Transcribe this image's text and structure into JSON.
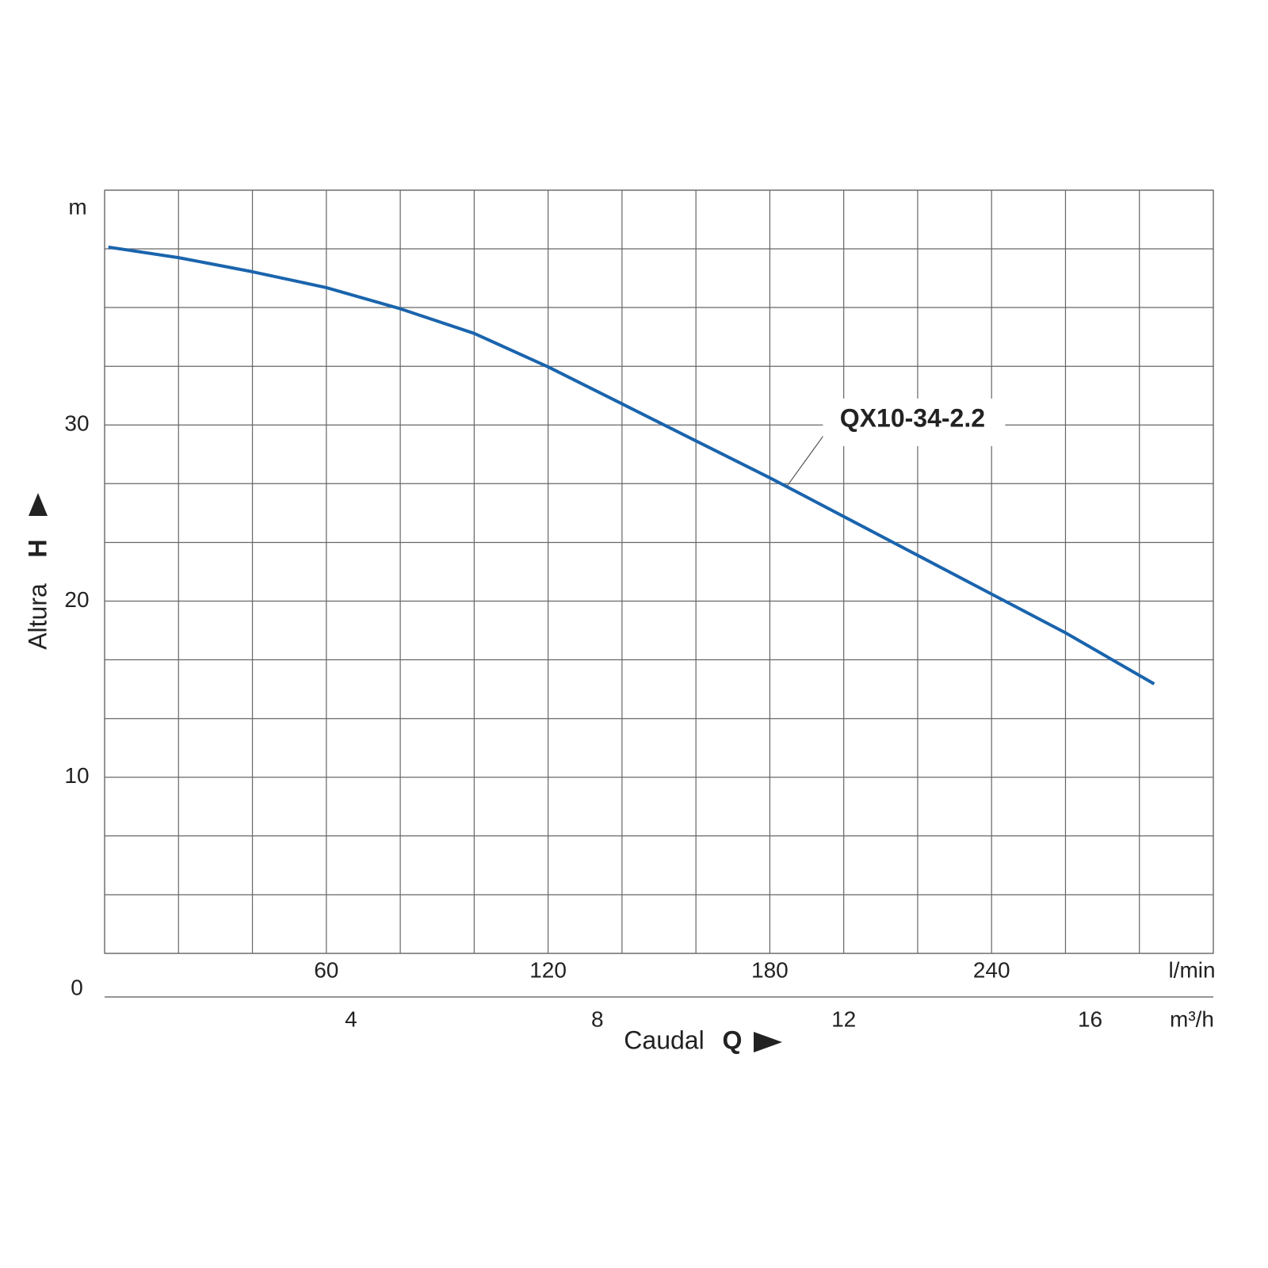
{
  "chart_data": {
    "type": "line",
    "y_unit": "m",
    "y_label": "Altura",
    "y_symbol": "H",
    "x_label": "Caudal",
    "x_symbol": "Q",
    "x_unit": "l/min",
    "x2_unit": "m³/h",
    "xlim": [
      0,
      300
    ],
    "xticks": [
      60,
      120,
      180,
      240
    ],
    "xgrid": [
      0,
      20,
      40,
      60,
      80,
      100,
      120,
      140,
      160,
      180,
      200,
      220,
      240,
      260,
      280,
      300
    ],
    "x2lim": [
      0,
      18
    ],
    "x2ticks": [
      4,
      8,
      12,
      16
    ],
    "ylim": [
      0,
      43.33
    ],
    "yticks": [
      0,
      10,
      20,
      30
    ],
    "ygrid": [
      0,
      3.33,
      6.67,
      10,
      13.33,
      16.67,
      20,
      23.33,
      26.67,
      30,
      33.33,
      36.67,
      40,
      43.33
    ],
    "series": [
      {
        "name": "QX10-34-2.2",
        "color": "#1a64ad",
        "x": [
          1,
          20,
          40,
          60,
          80,
          100,
          120,
          140,
          160,
          180,
          200,
          220,
          240,
          260,
          284
        ],
        "values": [
          40.1,
          39.5,
          38.7,
          37.8,
          36.6,
          35.2,
          33.3,
          31.2,
          29.1,
          27.0,
          24.8,
          22.6,
          20.4,
          18.2,
          15.3
        ]
      }
    ]
  }
}
